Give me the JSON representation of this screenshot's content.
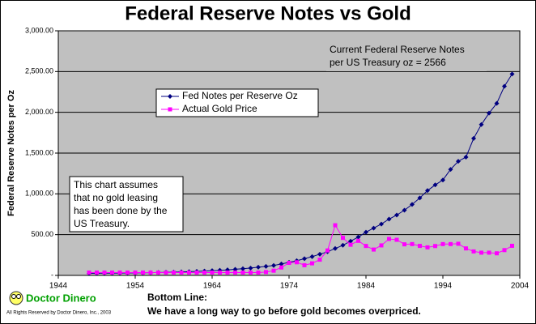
{
  "chart_data": {
    "type": "line",
    "title": "Federal Reserve Notes vs Gold",
    "y_label": "Federal Reserve Notes per Oz",
    "x": [
      1948,
      1949,
      1950,
      1951,
      1952,
      1953,
      1954,
      1955,
      1956,
      1957,
      1958,
      1959,
      1960,
      1961,
      1962,
      1963,
      1964,
      1965,
      1966,
      1967,
      1968,
      1969,
      1970,
      1971,
      1972,
      1973,
      1974,
      1975,
      1976,
      1977,
      1978,
      1979,
      1980,
      1981,
      1982,
      1983,
      1984,
      1985,
      1986,
      1987,
      1988,
      1989,
      1990,
      1991,
      1992,
      1993,
      1994,
      1995,
      1996,
      1997,
      1998,
      1999,
      2000,
      2001,
      2002,
      2003
    ],
    "series": [
      {
        "name": "Fed Notes per Reserve Oz",
        "color": "#000080",
        "marker": "diamond",
        "values": [
          25,
          26,
          27,
          28,
          29,
          30,
          31,
          32,
          34,
          36,
          38,
          40,
          43,
          46,
          50,
          54,
          58,
          63,
          68,
          75,
          82,
          90,
          100,
          110,
          122,
          140,
          160,
          180,
          205,
          230,
          260,
          290,
          330,
          370,
          420,
          470,
          530,
          580,
          630,
          690,
          740,
          800,
          870,
          950,
          1040,
          1110,
          1170,
          1300,
          1400,
          1450,
          1680,
          1850,
          1990,
          2110,
          2320,
          2470
        ]
      },
      {
        "name": "Actual Gold Price",
        "color": "#ff00ff",
        "marker": "square",
        "values": [
          35,
          35,
          35,
          35,
          35,
          35,
          35,
          35,
          35,
          35,
          35,
          35,
          35,
          35,
          35,
          35,
          35,
          35,
          35,
          35,
          35,
          35,
          35,
          41,
          58,
          97,
          154,
          161,
          125,
          148,
          193,
          306,
          615,
          460,
          376,
          424,
          361,
          317,
          368,
          447,
          437,
          381,
          384,
          362,
          344,
          360,
          384,
          384,
          388,
          331,
          294,
          279,
          279,
          271,
          310,
          363
        ]
      }
    ],
    "xlim": [
      1944,
      2004
    ],
    "xticks": [
      1944,
      1954,
      1964,
      1974,
      1984,
      1994,
      2004
    ],
    "ylim": [
      0,
      3000
    ],
    "yticks": [
      {
        "value": 0,
        "label": "-"
      },
      {
        "value": 500,
        "label": "500.00"
      },
      {
        "value": 1000,
        "label": "1,000.00"
      },
      {
        "value": 1500,
        "label": "1,500.00"
      },
      {
        "value": 2000,
        "label": "2,000.00"
      },
      {
        "value": 2500,
        "label": "2,500.00"
      },
      {
        "value": 3000,
        "label": "3,000.00"
      }
    ],
    "grid": true,
    "plot_background": "#c0c0c0",
    "annotations": {
      "current": [
        "Current Federal Reserve Notes",
        "per US Treasury oz = 2566"
      ],
      "assumption": [
        "This chart assumes",
        "that no gold leasing",
        "has been done by the",
        "US Treasury."
      ]
    },
    "footer": {
      "brand": "Doctor Dinero",
      "copyright": "All Rights Reserved by Doctor Dinero, Inc., 2003",
      "bottom_line_title": "Bottom Line:",
      "bottom_line_text": "We have a long way to go before gold becomes overpriced."
    }
  }
}
